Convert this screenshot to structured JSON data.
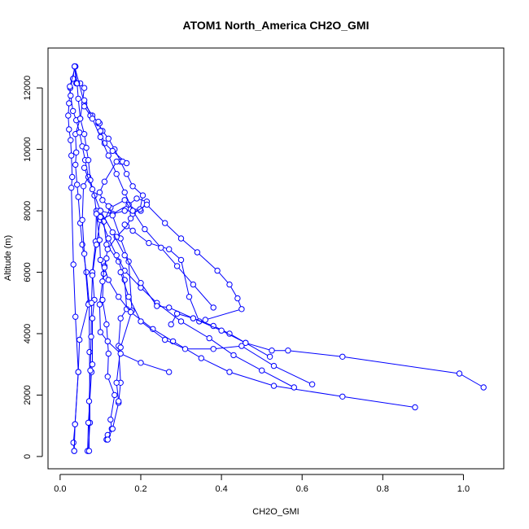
{
  "chart_data": {
    "type": "line",
    "title": "ATOM1 North_America CH2O_GMI",
    "xlabel": "CH2O_GMI",
    "ylabel": "Altitude (m)",
    "xlim": [
      -0.03,
      1.1
    ],
    "ylim": [
      -400,
      13300
    ],
    "xticks": [
      0.0,
      0.2,
      0.4,
      0.6,
      0.8,
      1.0
    ],
    "xtick_labels": [
      "0.0",
      "0.2",
      "0.4",
      "0.6",
      "0.8",
      "1.0"
    ],
    "yticks": [
      0,
      2000,
      4000,
      6000,
      8000,
      10000,
      12000
    ],
    "ytick_labels": [
      "0",
      "2000",
      "4000",
      "6000",
      "8000",
      "10000",
      "12000"
    ],
    "grid": false,
    "series_color": "#0000ff",
    "marker": "open-circle",
    "series": [
      {
        "points": [
          [
            0.035,
            180
          ],
          [
            0.033,
            450
          ],
          [
            0.037,
            1050
          ],
          [
            0.045,
            2750
          ],
          [
            0.038,
            4550
          ],
          [
            0.033,
            6250
          ],
          [
            0.028,
            8750
          ],
          [
            0.03,
            9100
          ],
          [
            0.028,
            9800
          ],
          [
            0.026,
            10300
          ],
          [
            0.022,
            10650
          ],
          [
            0.02,
            11100
          ],
          [
            0.022,
            11500
          ],
          [
            0.025,
            12000
          ],
          [
            0.032,
            12300
          ],
          [
            0.036,
            12700
          ],
          [
            0.04,
            12150
          ],
          [
            0.05,
            12150
          ],
          [
            0.06,
            12000
          ],
          [
            0.05,
            11000
          ],
          [
            0.038,
            10500
          ],
          [
            0.04,
            9900
          ],
          [
            0.038,
            9500
          ],
          [
            0.042,
            8850
          ],
          [
            0.045,
            8450
          ],
          [
            0.05,
            7600
          ],
          [
            0.055,
            6900
          ],
          [
            0.065,
            6000
          ],
          [
            0.072,
            5000
          ],
          [
            0.073,
            3400
          ],
          [
            0.074,
            1100
          ],
          [
            0.07,
            180
          ]
        ]
      },
      {
        "points": [
          [
            0.035,
            180
          ],
          [
            0.037,
            1050
          ],
          [
            0.045,
            2750
          ],
          [
            0.048,
            3800
          ],
          [
            0.07,
            4950
          ],
          [
            0.06,
            6600
          ],
          [
            0.055,
            7700
          ],
          [
            0.058,
            8800
          ],
          [
            0.07,
            9100
          ],
          [
            0.062,
            9650
          ],
          [
            0.055,
            10100
          ],
          [
            0.048,
            10550
          ],
          [
            0.04,
            10950
          ],
          [
            0.032,
            11250
          ],
          [
            0.026,
            11750
          ],
          [
            0.024,
            12050
          ],
          [
            0.038,
            12700
          ]
        ]
      },
      {
        "points": [
          [
            0.068,
            180
          ],
          [
            0.07,
            1100
          ],
          [
            0.078,
            2750
          ],
          [
            0.08,
            3000
          ],
          [
            0.08,
            4500
          ],
          [
            0.085,
            5100
          ],
          [
            0.08,
            6000
          ],
          [
            0.088,
            7000
          ],
          [
            0.09,
            8000
          ],
          [
            0.1,
            8000
          ],
          [
            0.13,
            7900
          ],
          [
            0.16,
            8000
          ],
          [
            0.2,
            8000
          ],
          [
            0.215,
            8300
          ],
          [
            0.19,
            8400
          ],
          [
            0.17,
            8200
          ],
          [
            0.13,
            7900
          ],
          [
            0.1,
            7700
          ],
          [
            0.09,
            6900
          ],
          [
            0.08,
            5900
          ],
          [
            0.078,
            5000
          ],
          [
            0.077,
            3900
          ],
          [
            0.075,
            2800
          ],
          [
            0.072,
            1800
          ],
          [
            0.072,
            180
          ]
        ]
      },
      {
        "points": [
          [
            0.115,
            550
          ],
          [
            0.118,
            700
          ],
          [
            0.128,
            900
          ],
          [
            0.125,
            1200
          ],
          [
            0.135,
            2000
          ],
          [
            0.118,
            2600
          ],
          [
            0.12,
            3350
          ],
          [
            0.115,
            4300
          ],
          [
            0.105,
            5100
          ],
          [
            0.108,
            5950
          ],
          [
            0.1,
            6400
          ],
          [
            0.098,
            7050
          ],
          [
            0.09,
            7900
          ],
          [
            0.085,
            8500
          ],
          [
            0.075,
            9000
          ],
          [
            0.07,
            9650
          ],
          [
            0.065,
            10050
          ],
          [
            0.06,
            10500
          ],
          [
            0.05,
            11000
          ],
          [
            0.045,
            11650
          ],
          [
            0.042,
            12150
          ],
          [
            0.036,
            12700
          ]
        ]
      },
      {
        "points": [
          [
            0.118,
            550
          ],
          [
            0.13,
            900
          ],
          [
            0.145,
            1750
          ],
          [
            0.15,
            2400
          ],
          [
            0.145,
            3600
          ],
          [
            0.15,
            4500
          ],
          [
            0.165,
            4800
          ],
          [
            0.16,
            5750
          ],
          [
            0.145,
            6350
          ],
          [
            0.115,
            6900
          ],
          [
            0.108,
            7650
          ],
          [
            0.125,
            8100
          ],
          [
            0.16,
            8350
          ],
          [
            0.175,
            8050
          ],
          [
            0.198,
            8050
          ],
          [
            0.205,
            8500
          ],
          [
            0.18,
            8800
          ],
          [
            0.165,
            9200
          ],
          [
            0.15,
            9600
          ],
          [
            0.135,
            10000
          ],
          [
            0.12,
            10350
          ],
          [
            0.105,
            10600
          ],
          [
            0.095,
            10850
          ],
          [
            0.08,
            11100
          ],
          [
            0.06,
            11500
          ],
          [
            0.036,
            12700
          ]
        ]
      },
      {
        "points": [
          [
            0.145,
            1800
          ],
          [
            0.14,
            2400
          ],
          [
            0.15,
            3550
          ],
          [
            0.178,
            4750
          ],
          [
            0.17,
            6350
          ],
          [
            0.15,
            7100
          ],
          [
            0.13,
            7850
          ],
          [
            0.12,
            8150
          ],
          [
            0.105,
            8350
          ],
          [
            0.098,
            8600
          ],
          [
            0.11,
            8950
          ],
          [
            0.14,
            9600
          ],
          [
            0.155,
            9600
          ],
          [
            0.165,
            9550
          ],
          [
            0.13,
            9950
          ],
          [
            0.11,
            10200
          ],
          [
            0.1,
            10600
          ],
          [
            0.098,
            10850
          ],
          [
            0.095,
            10900
          ],
          [
            0.075,
            11100
          ],
          [
            0.06,
            11400
          ]
        ]
      },
      {
        "points": [
          [
            0.27,
            2750
          ],
          [
            0.2,
            3050
          ],
          [
            0.15,
            3350
          ],
          [
            0.118,
            3750
          ],
          [
            0.1,
            4050
          ],
          [
            0.098,
            4950
          ],
          [
            0.105,
            5700
          ],
          [
            0.11,
            6200
          ],
          [
            0.118,
            6750
          ],
          [
            0.14,
            7150
          ],
          [
            0.165,
            7500
          ],
          [
            0.175,
            7750
          ],
          [
            0.18,
            7900
          ],
          [
            0.215,
            8200
          ],
          [
            0.26,
            7600
          ],
          [
            0.3,
            7100
          ],
          [
            0.34,
            6650
          ],
          [
            0.39,
            6050
          ],
          [
            0.42,
            5600
          ],
          [
            0.44,
            5150
          ],
          [
            0.45,
            4800
          ],
          [
            0.36,
            4450
          ],
          [
            0.345,
            4400
          ],
          [
            0.32,
            5200
          ],
          [
            0.3,
            6400
          ],
          [
            0.27,
            6750
          ],
          [
            0.22,
            6950
          ],
          [
            0.18,
            7350
          ],
          [
            0.16,
            7550
          ]
        ]
      },
      {
        "points": [
          [
            0.88,
            1600
          ],
          [
            0.7,
            1950
          ],
          [
            0.53,
            2300
          ],
          [
            0.42,
            2750
          ],
          [
            0.35,
            3200
          ],
          [
            0.28,
            3750
          ],
          [
            0.23,
            4150
          ],
          [
            0.175,
            4700
          ],
          [
            0.145,
            5200
          ],
          [
            0.12,
            5750
          ],
          [
            0.11,
            6150
          ],
          [
            0.115,
            6450
          ]
        ]
      },
      {
        "points": [
          [
            0.58,
            2250
          ],
          [
            0.5,
            2800
          ],
          [
            0.43,
            3300
          ],
          [
            0.37,
            3850
          ],
          [
            0.3,
            4400
          ],
          [
            0.24,
            5000
          ],
          [
            0.2,
            5500
          ],
          [
            0.16,
            6050
          ],
          [
            0.14,
            6550
          ],
          [
            0.12,
            7100
          ],
          [
            0.1,
            7800
          ]
        ]
      },
      {
        "points": [
          [
            1.05,
            2250
          ],
          [
            0.99,
            2700
          ],
          [
            0.7,
            3250
          ],
          [
            0.565,
            3450
          ],
          [
            0.525,
            3450
          ],
          [
            0.46,
            3700
          ],
          [
            0.42,
            4000
          ],
          [
            0.38,
            4250
          ],
          [
            0.33,
            4500
          ],
          [
            0.29,
            4650
          ],
          [
            0.275,
            4300
          ]
        ]
      },
      {
        "points": [
          [
            0.625,
            2350
          ],
          [
            0.53,
            2950
          ],
          [
            0.45,
            3600
          ],
          [
            0.38,
            3500
          ],
          [
            0.31,
            3500
          ],
          [
            0.26,
            3800
          ],
          [
            0.2,
            4400
          ],
          [
            0.17,
            5200
          ],
          [
            0.15,
            6000
          ]
        ]
      },
      {
        "points": [
          [
            0.52,
            3250
          ],
          [
            0.46,
            3700
          ],
          [
            0.4,
            4100
          ],
          [
            0.33,
            4500
          ],
          [
            0.27,
            4850
          ],
          [
            0.24,
            4900
          ],
          [
            0.2,
            5650
          ],
          [
            0.16,
            6550
          ],
          [
            0.13,
            7300
          ],
          [
            0.1,
            8000
          ],
          [
            0.08,
            8700
          ],
          [
            0.06,
            9400
          ]
        ]
      },
      {
        "points": [
          [
            0.38,
            4850
          ],
          [
            0.33,
            5600
          ],
          [
            0.29,
            6200
          ],
          [
            0.25,
            6800
          ],
          [
            0.21,
            7400
          ],
          [
            0.18,
            8000
          ],
          [
            0.16,
            8600
          ],
          [
            0.14,
            9200
          ],
          [
            0.12,
            9800
          ],
          [
            0.1,
            10400
          ],
          [
            0.08,
            11000
          ],
          [
            0.06,
            11600
          ]
        ]
      }
    ]
  }
}
